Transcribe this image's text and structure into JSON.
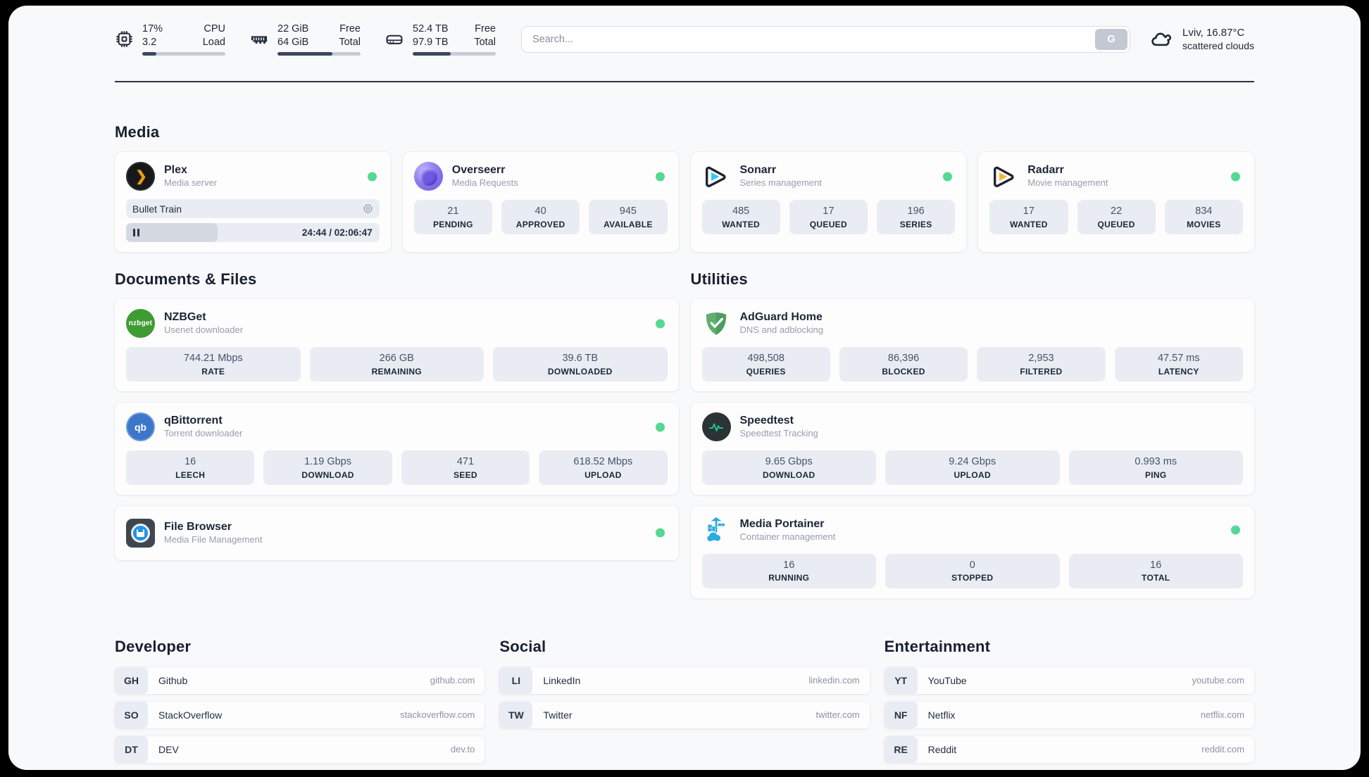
{
  "topbar": {
    "cpu": {
      "value1": "17%",
      "value2": "3.2",
      "label1": "CPU",
      "label2": "Load",
      "progress": 17
    },
    "ram": {
      "value1": "22 GiB",
      "value2": "64 GiB",
      "label1": "Free",
      "label2": "Total",
      "progress": 66
    },
    "disk": {
      "value1": "52.4 TB",
      "value2": "97.9 TB",
      "label1": "Free",
      "label2": "Total",
      "progress": 46
    },
    "search": {
      "placeholder": "Search...",
      "button_label": "G"
    },
    "weather": {
      "line1": "Lviv, 16.87°C",
      "line2": "scattered clouds"
    }
  },
  "media": {
    "title": "Media",
    "plex": {
      "name": "Plex",
      "subtitle": "Media server",
      "icon_label": "❯",
      "now_playing": "Bullet Train",
      "time": "24:44 / 02:06:47"
    },
    "overseerr": {
      "name": "Overseerr",
      "subtitle": "Media Requests",
      "stats": [
        {
          "value": "21",
          "label": "PENDING"
        },
        {
          "value": "40",
          "label": "APPROVED"
        },
        {
          "value": "945",
          "label": "AVAILABLE"
        }
      ]
    },
    "sonarr": {
      "name": "Sonarr",
      "subtitle": "Series management",
      "stats": [
        {
          "value": "485",
          "label": "WANTED"
        },
        {
          "value": "17",
          "label": "QUEUED"
        },
        {
          "value": "196",
          "label": "SERIES"
        }
      ]
    },
    "radarr": {
      "name": "Radarr",
      "subtitle": "Movie management",
      "stats": [
        {
          "value": "17",
          "label": "WANTED"
        },
        {
          "value": "22",
          "label": "QUEUED"
        },
        {
          "value": "834",
          "label": "MOVIES"
        }
      ]
    }
  },
  "documents": {
    "title": "Documents & Files",
    "nzbget": {
      "name": "NZBGet",
      "subtitle": "Usenet downloader",
      "icon_label": "nzbget",
      "stats": [
        {
          "value": "744.21 Mbps",
          "label": "RATE"
        },
        {
          "value": "266 GB",
          "label": "REMAINING"
        },
        {
          "value": "39.6 TB",
          "label": "DOWNLOADED"
        }
      ]
    },
    "qbittorrent": {
      "name": "qBittorrent",
      "subtitle": "Torrent downloader",
      "icon_label": "qb",
      "stats": [
        {
          "value": "16",
          "label": "LEECH"
        },
        {
          "value": "1.19 Gbps",
          "label": "DOWNLOAD"
        },
        {
          "value": "471",
          "label": "SEED"
        },
        {
          "value": "618.52 Mbps",
          "label": "UPLOAD"
        }
      ]
    },
    "filebrowser": {
      "name": "File Browser",
      "subtitle": "Media File Management"
    }
  },
  "utilities": {
    "title": "Utilities",
    "adguard": {
      "name": "AdGuard Home",
      "subtitle": "DNS and adblocking",
      "stats": [
        {
          "value": "498,508",
          "label": "QUERIES"
        },
        {
          "value": "86,396",
          "label": "BLOCKED"
        },
        {
          "value": "2,953",
          "label": "FILTERED"
        },
        {
          "value": "47.57 ms",
          "label": "LATENCY"
        }
      ]
    },
    "speedtest": {
      "name": "Speedtest",
      "subtitle": "Speedtest Tracking",
      "stats": [
        {
          "value": "9.65 Gbps",
          "label": "DOWNLOAD"
        },
        {
          "value": "9.24 Gbps",
          "label": "UPLOAD"
        },
        {
          "value": "0.993 ms",
          "label": "PING"
        }
      ]
    },
    "portainer": {
      "name": "Media Portainer",
      "subtitle": "Container management",
      "stats": [
        {
          "value": "16",
          "label": "RUNNING"
        },
        {
          "value": "0",
          "label": "STOPPED"
        },
        {
          "value": "16",
          "label": "TOTAL"
        }
      ]
    }
  },
  "bookmarks": [
    {
      "title": "Developer",
      "links": [
        {
          "abbr": "GH",
          "name": "Github",
          "url": "github.com"
        },
        {
          "abbr": "SO",
          "name": "StackOverflow",
          "url": "stackoverflow.com"
        },
        {
          "abbr": "DT",
          "name": "DEV",
          "url": "dev.to"
        }
      ]
    },
    {
      "title": "Social",
      "links": [
        {
          "abbr": "LI",
          "name": "LinkedIn",
          "url": "linkedin.com"
        },
        {
          "abbr": "TW",
          "name": "Twitter",
          "url": "twitter.com"
        }
      ]
    },
    {
      "title": "Entertainment",
      "links": [
        {
          "abbr": "YT",
          "name": "YouTube",
          "url": "youtube.com"
        },
        {
          "abbr": "NF",
          "name": "Netflix",
          "url": "netflix.com"
        },
        {
          "abbr": "RE",
          "name": "Reddit",
          "url": "reddit.com"
        }
      ]
    }
  ],
  "colors": {
    "accent_green": "#55d893",
    "bar_fill": "#3a465a",
    "page_bg": "#f8f9fb",
    "stat_bg": "#e9edf3"
  }
}
